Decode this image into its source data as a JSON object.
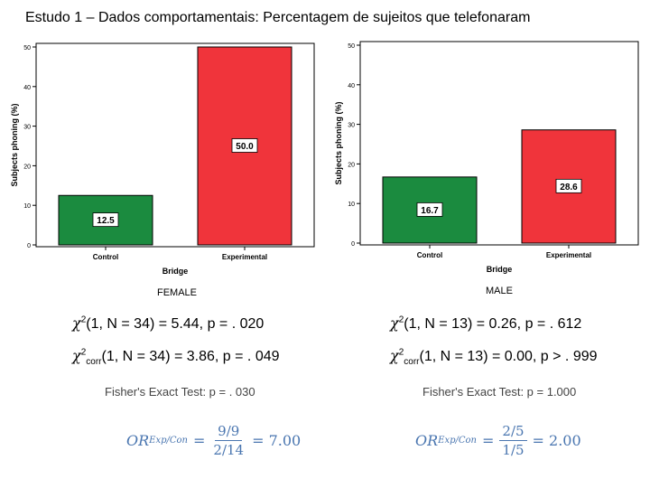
{
  "title": "Estudo 1 – Dados comportamentais: Percentagem de sujeitos que telefonaram",
  "colors": {
    "control": "#1b8b3f",
    "experimental": "#f0343b",
    "frame": "#000000",
    "or_text": "#4a76b0"
  },
  "chart_data": [
    {
      "type": "bar",
      "group_label": "FEMALE",
      "categories": [
        "Control",
        "Experimental"
      ],
      "values": [
        12.5,
        50.0
      ],
      "value_labels": [
        "12.5",
        "50.0"
      ],
      "xlabel": "Bridge",
      "ylabel": "Subjects phoning (%)",
      "ylim": [
        0,
        50
      ],
      "yticks": [
        "0",
        "10",
        "20",
        "30",
        "40",
        "50"
      ]
    },
    {
      "type": "bar",
      "group_label": "MALE",
      "categories": [
        "Control",
        "Experimental"
      ],
      "values": [
        16.7,
        28.6
      ],
      "value_labels": [
        "16.7",
        "28.6"
      ],
      "xlabel": "Bridge",
      "ylabel": "Subjects phoning (%)",
      "ylim": [
        0,
        50
      ],
      "yticks": [
        "0",
        "10",
        "20",
        "30",
        "40",
        "50"
      ]
    }
  ],
  "stats": {
    "female": {
      "chi_symbol": "χ",
      "chi_sup": "2",
      "chi_rest": "(1, N = 34) = 5.44, p = . 020",
      "chicorr_symbol": "χ",
      "chicorr_sup": "2",
      "chicorr_sub": "corr",
      "chicorr_rest": "(1, N = 34) = 3.86, p = . 049",
      "fisher": "Fisher's Exact Test: p = . 030",
      "or_lhs": "OR",
      "or_sub": "Exp/Con",
      "or_eq": "=",
      "or_num": "9/9",
      "or_den": "2/14",
      "or_result": "= 7.00"
    },
    "male": {
      "chi_symbol": "χ",
      "chi_sup": "2",
      "chi_rest": "(1, N = 13) = 0.26, p = . 612",
      "chicorr_symbol": "χ",
      "chicorr_sup": "2",
      "chicorr_sub": "corr",
      "chicorr_rest": "(1, N = 13) = 0.00, p > . 999",
      "fisher": "Fisher's Exact Test: p = 1.000",
      "or_lhs": "OR",
      "or_sub": "Exp/Con",
      "or_eq": "=",
      "or_num": "2/5",
      "or_den": "1/5",
      "or_result": "= 2.00"
    }
  }
}
